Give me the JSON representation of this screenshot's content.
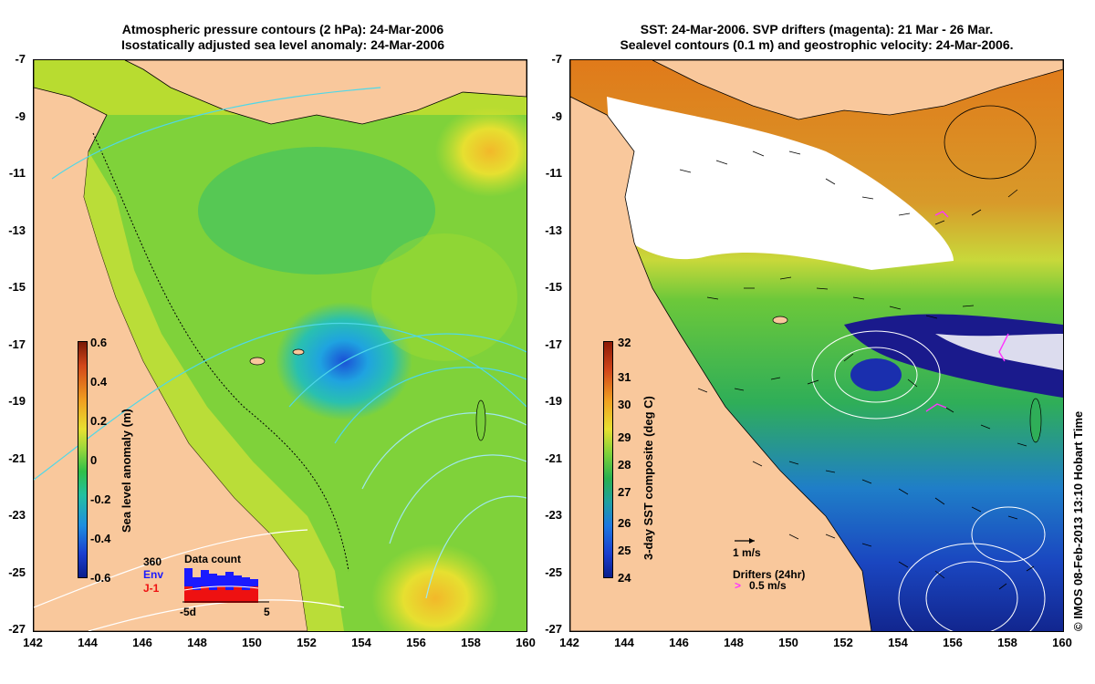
{
  "left": {
    "title_line1": "Atmospheric pressure contours (2 hPa): 24-Mar-2006",
    "title_line2": "Isostatically adjusted sea level anomaly: 24-Mar-2006",
    "colorbar_label": "Sea level anomaly (m)",
    "colorbar_ticks": [
      "0.6",
      "0.4",
      "0.2",
      "0",
      "-0.2",
      "-0.4",
      "-0.6"
    ],
    "inset": {
      "title": "Data count",
      "count": "360",
      "env_label": "Env",
      "j1_label": "J-1",
      "xmin_label": "-5d",
      "xmax_label": "5"
    }
  },
  "right": {
    "title_line1": "SST: 24-Mar-2006. SVP drifters (magenta): 21 Mar - 26 Mar.",
    "title_line2": "Sealevel contours (0.1 m) and geostrophic velocity: 24-Mar-2006.",
    "colorbar_label": "3-day SST composite (deg C)",
    "colorbar_ticks": [
      "32",
      "31",
      "30",
      "29",
      "28",
      "27",
      "26",
      "25",
      "24"
    ],
    "vel_scale_label": "1 m/s",
    "drifters_label": "Drifters (24hr)",
    "drift_scale_label": "0.5 m/s"
  },
  "axes": {
    "lat_ticks": [
      "-7",
      "-9",
      "-11",
      "-13",
      "-15",
      "-17",
      "-19",
      "-21",
      "-23",
      "-25",
      "-27"
    ],
    "lon_ticks": [
      "142",
      "144",
      "146",
      "148",
      "150",
      "152",
      "154",
      "156",
      "158",
      "160"
    ]
  },
  "credit": "© IMOS 08-Feb-2013 13:10 Hobart Time",
  "colors": {
    "land": "#f9c89c",
    "sla_low": "#0a1e8c",
    "sla_high": "#8c1a0a",
    "sst_low": "#0a1e8c",
    "sst_high": "#b22000",
    "env_bar": "#1a1aff",
    "j1_bar": "#ee1111",
    "drifter": "#ff33ff"
  }
}
